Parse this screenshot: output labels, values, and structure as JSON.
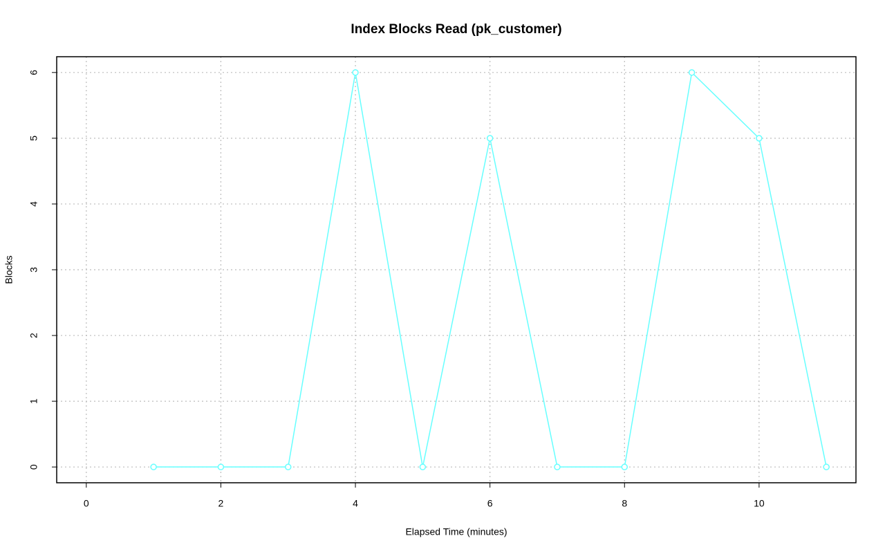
{
  "chart_data": {
    "type": "line",
    "title": "Index Blocks Read (pk_customer)",
    "x_label": "Elapsed Time (minutes)",
    "y_label": "Blocks",
    "x": [
      1,
      2,
      3,
      4,
      5,
      6,
      7,
      8,
      9,
      10,
      11
    ],
    "series": [
      {
        "name": "pk_customer",
        "color": "#66ffff",
        "values": [
          0,
          0,
          0,
          6,
          0,
          5,
          0,
          0,
          6,
          5,
          0
        ]
      }
    ],
    "xlim": [
      -0.44,
      11.44
    ],
    "xticks": [
      0,
      2,
      4,
      6,
      8,
      10
    ],
    "ylim": [
      -0.24,
      6.24
    ],
    "yticks": [
      0,
      1,
      2,
      3,
      4,
      5,
      6
    ],
    "grid": true
  }
}
